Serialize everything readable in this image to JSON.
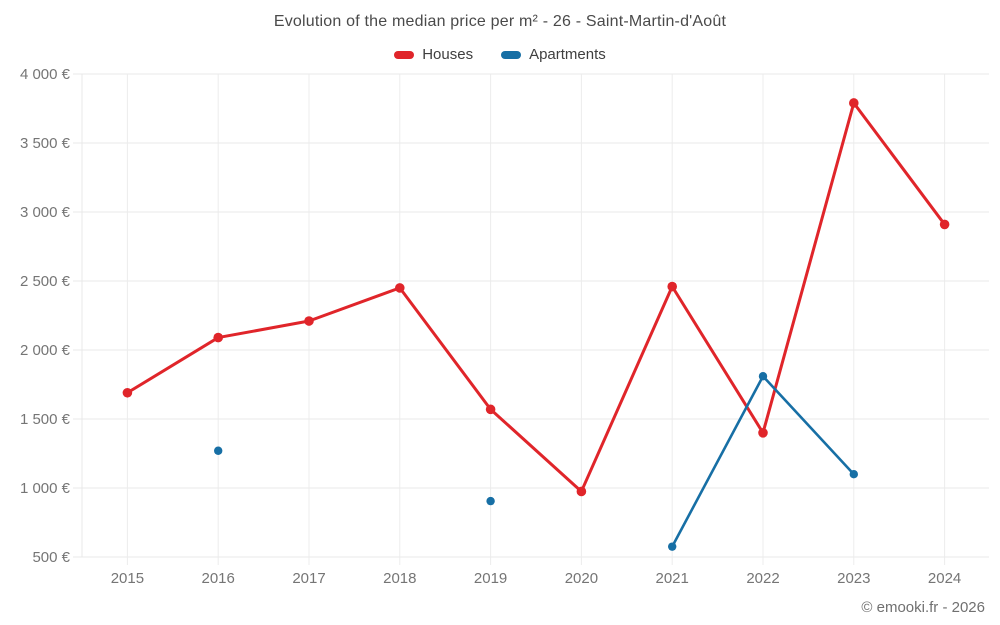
{
  "header": {
    "title": "Evolution of the median price per m² - 26 - Saint-Martin-d'Août"
  },
  "footer": {
    "credit": "© emooki.fr - 2026"
  },
  "chart_data": {
    "type": "line",
    "title": "Evolution of the median price per m² - 26 - Saint-Martin-d'Août",
    "x_categories": [
      "2015",
      "2016",
      "2017",
      "2018",
      "2019",
      "2020",
      "2021",
      "2022",
      "2023",
      "2024"
    ],
    "series": [
      {
        "name": "Houses",
        "color": "#e0252a",
        "values": [
          1690,
          2090,
          2210,
          2450,
          1570,
          975,
          2460,
          1400,
          3790,
          2910
        ]
      },
      {
        "name": "Apartments",
        "color": "#176fa5",
        "values": [
          null,
          1270,
          null,
          null,
          905,
          null,
          575,
          1810,
          1100,
          null
        ]
      }
    ],
    "ylim": [
      500,
      4000
    ],
    "y_ticks": [
      {
        "value": 500,
        "label": "500 €"
      },
      {
        "value": 1000,
        "label": "1 000 €"
      },
      {
        "value": 1500,
        "label": "1 500 €"
      },
      {
        "value": 2000,
        "label": "2 000 €"
      },
      {
        "value": 2500,
        "label": "2 500 €"
      },
      {
        "value": 3000,
        "label": "3 000 €"
      },
      {
        "value": 3500,
        "label": "3 500 €"
      },
      {
        "value": 4000,
        "label": "4 000 €"
      }
    ],
    "grid": true,
    "legend_position": "top",
    "currency": "€"
  }
}
